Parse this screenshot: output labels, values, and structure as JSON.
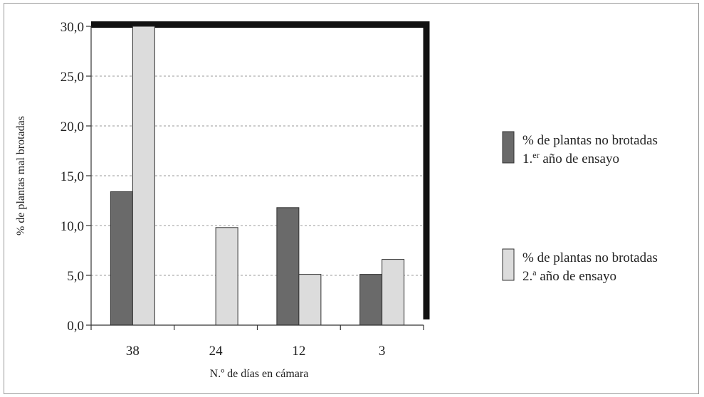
{
  "chart_data": {
    "type": "bar",
    "title": "",
    "xlabel": "N.º de días en cámara",
    "ylabel": "% de plantas mal brotadas",
    "categories": [
      "38",
      "24",
      "12",
      "3"
    ],
    "ylim": [
      0,
      30
    ],
    "yticks": [
      "0,0",
      "5,0",
      "10,0",
      "15,0",
      "20,0",
      "25,0",
      "30,0"
    ],
    "grid": true,
    "legend_position": "right",
    "series": [
      {
        "name": "% de plantas no brotadas 1.er año de ensayo",
        "legend_line1": "% de plantas no brotadas",
        "legend_line2_prefix": "1.",
        "legend_line2_sup": "er",
        "legend_line2_suffix": " año de ensayo",
        "color": "#6a6a6a",
        "values": [
          13.4,
          0,
          11.8,
          5.1
        ]
      },
      {
        "name": "% de plantas no brotadas 2.ª año de ensayo",
        "legend_line1": "% de plantas no brotadas",
        "legend_line2_prefix": "2.",
        "legend_line2_sup": "a",
        "legend_line2_suffix": " año de ensayo",
        "color": "#dcdcdc",
        "values": [
          30.0,
          9.8,
          5.1,
          6.6
        ]
      }
    ]
  }
}
